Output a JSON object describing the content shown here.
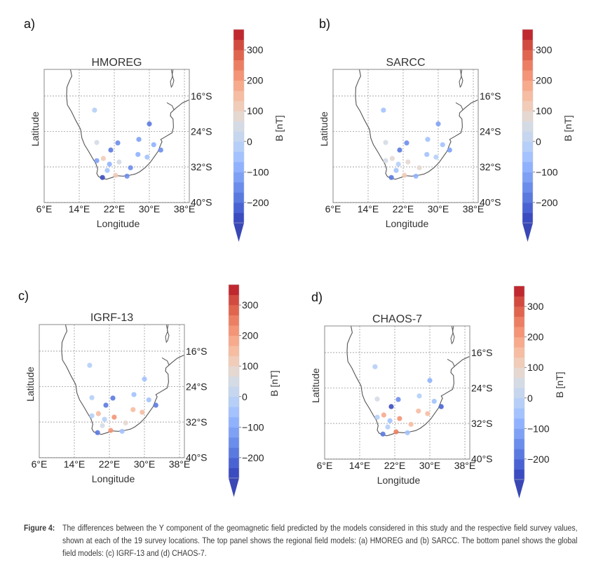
{
  "chart_data": {
    "type": "scatter",
    "description": "Four map panels of southern Africa showing Y-component differences (model minus field survey) at 19 survey locations",
    "colorbar": {
      "label": "B [nT]",
      "ticks": [
        -200,
        -100,
        0,
        100,
        200,
        300
      ],
      "tick_labels": [
        "−200",
        "−100",
        "0",
        "100",
        "200",
        "300"
      ],
      "vmin": -267,
      "vmax": 367,
      "extend": "min",
      "colormap": "coolwarm",
      "colors_low_to_high": [
        "#3b4cc0",
        "#4a63d3",
        "#5b7ae0",
        "#6b8deb",
        "#7ea1f5",
        "#90b2fe",
        "#a3c2fe",
        "#b5cff8",
        "#c6d6ef",
        "#d5dbe5",
        "#e5d8d1",
        "#f1ccb8",
        "#f6bda2",
        "#f7aa8c",
        "#f39576",
        "#ec7f63",
        "#e0654f",
        "#d24b40",
        "#c0282f"
      ]
    },
    "axes": {
      "xlabel": "Longitude",
      "ylabel": "Latitude",
      "xticks": [
        6,
        14,
        22,
        30,
        38
      ],
      "xtick_labels": [
        "6°E",
        "14°E",
        "22°E",
        "30°E",
        "38°E"
      ],
      "yticks": [
        16,
        24,
        32,
        40
      ],
      "ytick_labels": [
        "16°S",
        "24°S",
        "32°S",
        "40°S"
      ],
      "xlim": [
        6,
        39
      ],
      "ylim_south": [
        10,
        40
      ],
      "grid": true
    },
    "stations": [
      {
        "lon": 17.5,
        "lat": -19.2
      },
      {
        "lon": 30.0,
        "lat": -22.3
      },
      {
        "lon": 18.0,
        "lat": -26.5
      },
      {
        "lon": 22.8,
        "lat": -26.6
      },
      {
        "lon": 27.6,
        "lat": -25.8
      },
      {
        "lon": 31.0,
        "lat": -27.0
      },
      {
        "lon": 21.2,
        "lat": -28.2
      },
      {
        "lon": 32.6,
        "lat": -28.2
      },
      {
        "lon": 27.4,
        "lat": -29.2
      },
      {
        "lon": 29.5,
        "lat": -29.8
      },
      {
        "lon": 18.0,
        "lat": -30.6
      },
      {
        "lon": 19.5,
        "lat": -30.1
      },
      {
        "lon": 20.9,
        "lat": -31.4
      },
      {
        "lon": 23.1,
        "lat": -30.9
      },
      {
        "lon": 20.4,
        "lat": -32.8
      },
      {
        "lon": 25.7,
        "lat": -32.2
      },
      {
        "lon": 19.3,
        "lat": -34.4
      },
      {
        "lon": 22.3,
        "lat": -33.9
      },
      {
        "lon": 24.9,
        "lat": -34.1
      }
    ],
    "panels": [
      {
        "label": "a)",
        "title": "HMOREG",
        "values": [
          -20,
          -200,
          60,
          -140,
          -130,
          -80,
          -200,
          -140,
          -90,
          -40,
          -130,
          110,
          -70,
          60,
          -50,
          -140,
          -240,
          120,
          -140
        ]
      },
      {
        "label": "b)",
        "title": "SARCC",
        "values": [
          -50,
          -120,
          60,
          -150,
          -40,
          -40,
          -200,
          -130,
          -40,
          -20,
          60,
          80,
          -30,
          80,
          -40,
          90,
          -200,
          110,
          -70
        ]
      },
      {
        "label": "c)",
        "title": "IGRF-13",
        "values": [
          -30,
          -60,
          -30,
          -200,
          -60,
          -40,
          -190,
          -200,
          160,
          140,
          -20,
          160,
          -30,
          230,
          50,
          70,
          -200,
          230,
          -60
        ]
      },
      {
        "label": "d)",
        "title": "CHAOS-7",
        "values": [
          -30,
          -70,
          50,
          -150,
          -30,
          -40,
          -240,
          -230,
          150,
          140,
          -30,
          190,
          -50,
          230,
          -30,
          150,
          -190,
          260,
          -60
        ]
      }
    ]
  },
  "caption": {
    "label": "Figure 4:",
    "text": "The differences between the Y component of the geomagnetic field predicted by the models considered in this study and the respective field survey values, shown at each of the 19 survey locations. The top panel shows the regional field models: (a) HMOREG and (b) SARCC. The bottom panel shows the global field models: (c) IGRF-13 and (d) CHAOS-7."
  }
}
